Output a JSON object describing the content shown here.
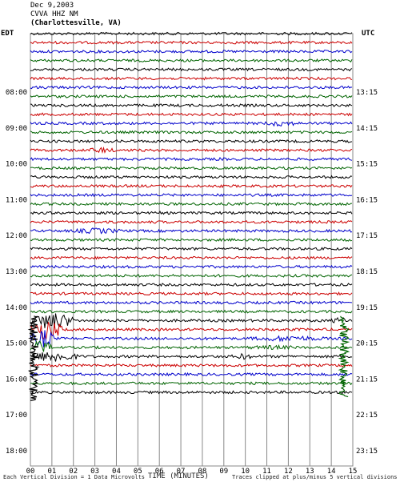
{
  "header": {
    "date": "Dec 9,2003",
    "station": "CVVA HHZ NM",
    "location": "(Charlottesville, VA)"
  },
  "chart_data": {
    "type": "line",
    "title": "Dec 9,2003",
    "left_axis_label": "EDT",
    "right_axis_label": "UTC",
    "left_tick_labels": [
      "08:00",
      "09:00",
      "10:00",
      "11:00",
      "12:00",
      "13:00",
      "14:00",
      "15:00",
      "16:00",
      "17:00",
      "18:00"
    ],
    "right_tick_labels": [
      "13:15",
      "14:15",
      "15:15",
      "16:15",
      "17:15",
      "18:15",
      "19:15",
      "20:15",
      "21:15",
      "22:15",
      "23:15"
    ],
    "x_tick_labels": [
      "00",
      "01",
      "02",
      "03",
      "04",
      "05",
      "06",
      "07",
      "08",
      "09",
      "10",
      "11",
      "12",
      "13",
      "14",
      "15"
    ],
    "xlabel": "TIME (MINUTES)",
    "xlim": [
      0,
      15
    ],
    "rows_per_hour": 4,
    "trace_colors": [
      "#000000",
      "#cc0000",
      "#0000cc",
      "#006400"
    ],
    "traces_drawn": 41,
    "noise_level": 1.6,
    "events": [
      {
        "row": 3,
        "start": 14.9,
        "end": 15.0,
        "amp": 4
      },
      {
        "row": 10,
        "start": 10.7,
        "end": 12.6,
        "amp": 4
      },
      {
        "row": 13,
        "start": 2.6,
        "end": 4.0,
        "amp": 4
      },
      {
        "row": 14,
        "start": 8.0,
        "end": 9.6,
        "amp": 2
      },
      {
        "row": 20,
        "start": 5.8,
        "end": 6.1,
        "amp": 3
      },
      {
        "row": 22,
        "start": 1.8,
        "end": 4.4,
        "amp": 4
      },
      {
        "row": 29,
        "start": 11.2,
        "end": 11.8,
        "amp": 2
      },
      {
        "row": 32,
        "start": 0.0,
        "end": 2.0,
        "amp": 12
      },
      {
        "row": 32,
        "start": 14.0,
        "end": 14.8,
        "amp": 5
      },
      {
        "row": 33,
        "start": 0.0,
        "end": 1.5,
        "amp": 14
      },
      {
        "row": 34,
        "start": 0.0,
        "end": 1.2,
        "amp": 12
      },
      {
        "row": 34,
        "start": 10.0,
        "end": 14.0,
        "amp": 4
      },
      {
        "row": 35,
        "start": 0.0,
        "end": 1.0,
        "amp": 10
      },
      {
        "row": 35,
        "start": 9.6,
        "end": 13.0,
        "amp": 3
      },
      {
        "row": 36,
        "start": 0.0,
        "end": 2.2,
        "amp": 8
      },
      {
        "row": 36,
        "start": 9.3,
        "end": 10.5,
        "amp": 4
      }
    ],
    "big_spikes": [
      {
        "minute": 0.15,
        "top_row": 31.5,
        "bottom_row": 41,
        "color": "#000000"
      },
      {
        "minute": 14.6,
        "top_row": 31.5,
        "bottom_row": 40.5,
        "color": "#006400"
      }
    ]
  },
  "footer": {
    "left_note": "Each Vertical Division = 1 Data Microvolts",
    "right_note": "Traces clipped at plus/minus 5 vertical divisions"
  },
  "colors": {
    "grid": "#888888",
    "background": "#ffffff"
  }
}
